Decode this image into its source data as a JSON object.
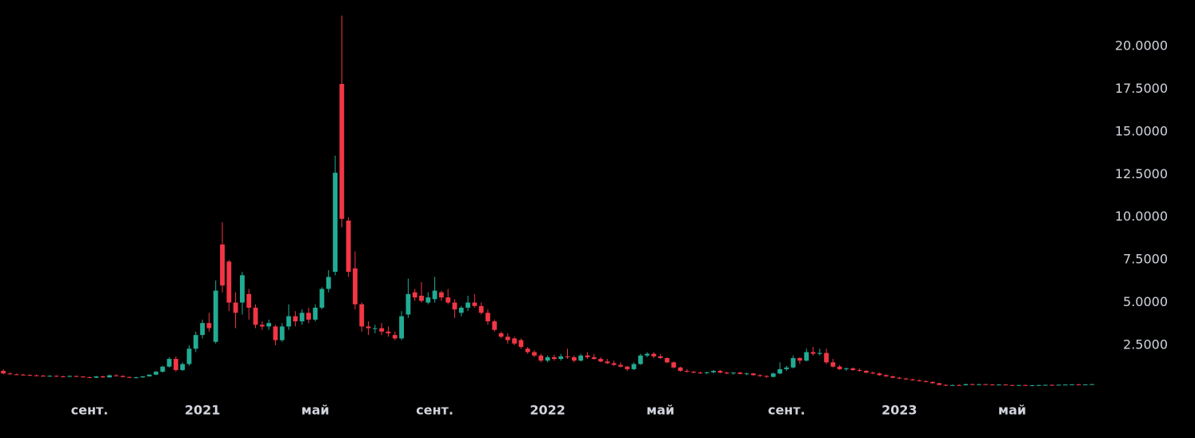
{
  "chart_data": {
    "type": "candlestick",
    "up_color": "#22ab94",
    "down_color": "#f23645",
    "xlim": [
      -0.5,
      165.8
    ],
    "ylim": [
      0,
      22.7
    ],
    "xticks": [
      {
        "value": 13,
        "label": "сент."
      },
      {
        "value": 30,
        "label": "2021"
      },
      {
        "value": 47,
        "label": "май"
      },
      {
        "value": 65,
        "label": "сент."
      },
      {
        "value": 82,
        "label": "2022"
      },
      {
        "value": 99,
        "label": "май"
      },
      {
        "value": 118,
        "label": "сент."
      },
      {
        "value": 135,
        "label": "2023"
      },
      {
        "value": 152,
        "label": "май"
      }
    ],
    "yticks": [
      {
        "value": 2.5,
        "label": "2.5000"
      },
      {
        "value": 5,
        "label": "5.0000"
      },
      {
        "value": 7.5,
        "label": "7.5000"
      },
      {
        "value": 10,
        "label": "10.0000"
      },
      {
        "value": 12.5,
        "label": "12.5000"
      },
      {
        "value": 15,
        "label": "15.0000"
      },
      {
        "value": 17.5,
        "label": "17.5000"
      },
      {
        "value": 20,
        "label": "20.0000"
      }
    ],
    "candles": [
      [
        1.0,
        1.1,
        0.8,
        0.85
      ],
      [
        0.85,
        0.9,
        0.78,
        0.8
      ],
      [
        0.8,
        0.85,
        0.75,
        0.78
      ],
      [
        0.78,
        0.82,
        0.72,
        0.76
      ],
      [
        0.76,
        0.8,
        0.7,
        0.74
      ],
      [
        0.74,
        0.78,
        0.68,
        0.72
      ],
      [
        0.72,
        0.76,
        0.66,
        0.7
      ],
      [
        0.7,
        0.75,
        0.65,
        0.71
      ],
      [
        0.71,
        0.74,
        0.64,
        0.68
      ],
      [
        0.68,
        0.72,
        0.62,
        0.66
      ],
      [
        0.66,
        0.74,
        0.64,
        0.7
      ],
      [
        0.7,
        0.73,
        0.63,
        0.67
      ],
      [
        0.67,
        0.7,
        0.6,
        0.63
      ],
      [
        0.63,
        0.68,
        0.58,
        0.6
      ],
      [
        0.6,
        0.7,
        0.58,
        0.68
      ],
      [
        0.68,
        0.72,
        0.6,
        0.62
      ],
      [
        0.62,
        0.78,
        0.6,
        0.74
      ],
      [
        0.74,
        0.8,
        0.66,
        0.7
      ],
      [
        0.7,
        0.74,
        0.62,
        0.64
      ],
      [
        0.64,
        0.68,
        0.58,
        0.6
      ],
      [
        0.6,
        0.66,
        0.56,
        0.62
      ],
      [
        0.62,
        0.7,
        0.6,
        0.68
      ],
      [
        0.68,
        0.8,
        0.66,
        0.78
      ],
      [
        0.78,
        1.0,
        0.75,
        0.95
      ],
      [
        0.95,
        1.3,
        0.9,
        1.25
      ],
      [
        1.25,
        1.8,
        1.2,
        1.7
      ],
      [
        1.7,
        1.85,
        0.95,
        1.05
      ],
      [
        1.05,
        1.5,
        1.0,
        1.4
      ],
      [
        1.4,
        2.5,
        1.3,
        2.3
      ],
      [
        2.3,
        3.3,
        2.1,
        3.1
      ],
      [
        3.1,
        4.0,
        2.9,
        3.8
      ],
      [
        3.8,
        4.4,
        3.3,
        3.5
      ],
      [
        2.7,
        6.3,
        2.6,
        5.7
      ],
      [
        8.4,
        9.7,
        5.6,
        6.0
      ],
      [
        7.4,
        7.5,
        4.5,
        5.0
      ],
      [
        5.0,
        5.6,
        3.5,
        4.4
      ],
      [
        5.0,
        6.8,
        4.3,
        6.6
      ],
      [
        5.5,
        5.8,
        4.0,
        4.7
      ],
      [
        4.7,
        4.9,
        3.5,
        3.7
      ],
      [
        3.7,
        3.9,
        3.4,
        3.6
      ],
      [
        3.6,
        4.0,
        3.4,
        3.8
      ],
      [
        3.6,
        3.7,
        2.5,
        2.8
      ],
      [
        2.8,
        3.8,
        2.7,
        3.6
      ],
      [
        3.6,
        4.9,
        3.4,
        4.2
      ],
      [
        4.2,
        4.5,
        3.6,
        3.9
      ],
      [
        3.9,
        4.6,
        3.7,
        4.4
      ],
      [
        4.4,
        4.7,
        3.8,
        4.0
      ],
      [
        4.0,
        4.9,
        3.9,
        4.7
      ],
      [
        4.7,
        5.9,
        4.6,
        5.8
      ],
      [
        5.8,
        6.9,
        5.6,
        6.5
      ],
      [
        6.8,
        13.6,
        6.6,
        12.6
      ],
      [
        17.8,
        21.8,
        9.4,
        9.9
      ],
      [
        9.8,
        10.0,
        6.5,
        6.8
      ],
      [
        7.0,
        8.0,
        4.6,
        4.9
      ],
      [
        4.9,
        5.0,
        3.3,
        3.6
      ],
      [
        3.6,
        3.9,
        3.1,
        3.5
      ],
      [
        3.5,
        3.7,
        3.2,
        3.5
      ],
      [
        3.5,
        3.8,
        3.1,
        3.3
      ],
      [
        3.3,
        3.6,
        3.0,
        3.2
      ],
      [
        3.1,
        3.3,
        2.8,
        2.9
      ],
      [
        2.9,
        4.5,
        2.8,
        4.2
      ],
      [
        4.3,
        6.4,
        4.1,
        5.5
      ],
      [
        5.6,
        5.8,
        5.1,
        5.3
      ],
      [
        5.4,
        6.2,
        5.0,
        5.1
      ],
      [
        5.0,
        5.6,
        4.9,
        5.3
      ],
      [
        5.2,
        6.5,
        5.0,
        5.7
      ],
      [
        5.6,
        5.7,
        5.1,
        5.3
      ],
      [
        5.3,
        5.8,
        4.9,
        5.0
      ],
      [
        5.0,
        5.2,
        4.1,
        4.6
      ],
      [
        4.4,
        4.8,
        4.2,
        4.7
      ],
      [
        4.7,
        5.4,
        4.5,
        5.0
      ],
      [
        5.0,
        5.5,
        4.7,
        4.8
      ],
      [
        4.8,
        5.0,
        4.3,
        4.4
      ],
      [
        4.4,
        4.6,
        3.7,
        3.9
      ],
      [
        3.9,
        4.0,
        3.3,
        3.4
      ],
      [
        3.2,
        3.3,
        2.9,
        3.0
      ],
      [
        3.0,
        3.2,
        2.6,
        2.8
      ],
      [
        2.9,
        3.0,
        2.5,
        2.6
      ],
      [
        2.8,
        2.9,
        2.3,
        2.4
      ],
      [
        2.3,
        2.4,
        2.0,
        2.1
      ],
      [
        2.1,
        2.2,
        1.8,
        1.9
      ],
      [
        1.9,
        2.0,
        1.5,
        1.6
      ],
      [
        1.6,
        1.9,
        1.5,
        1.8
      ],
      [
        1.8,
        1.95,
        1.6,
        1.7
      ],
      [
        1.7,
        2.0,
        1.6,
        1.85
      ],
      [
        1.85,
        2.3,
        1.7,
        1.8
      ],
      [
        1.8,
        1.9,
        1.5,
        1.6
      ],
      [
        1.6,
        2.0,
        1.55,
        1.9
      ],
      [
        1.9,
        2.1,
        1.7,
        1.8
      ],
      [
        1.8,
        2.0,
        1.65,
        1.7
      ],
      [
        1.7,
        1.8,
        1.5,
        1.55
      ],
      [
        1.55,
        1.7,
        1.4,
        1.45
      ],
      [
        1.45,
        1.6,
        1.3,
        1.35
      ],
      [
        1.35,
        1.5,
        1.2,
        1.25
      ],
      [
        1.25,
        1.3,
        1.0,
        1.1
      ],
      [
        1.1,
        1.5,
        1.05,
        1.4
      ],
      [
        1.4,
        2.0,
        1.35,
        1.9
      ],
      [
        1.9,
        2.1,
        1.8,
        2.0
      ],
      [
        2.0,
        2.1,
        1.75,
        1.85
      ],
      [
        1.85,
        2.0,
        1.7,
        1.75
      ],
      [
        1.75,
        1.8,
        1.45,
        1.5
      ],
      [
        1.5,
        1.55,
        1.15,
        1.2
      ],
      [
        1.2,
        1.25,
        0.95,
        1.0
      ],
      [
        1.0,
        1.1,
        0.9,
        0.95
      ],
      [
        0.95,
        1.0,
        0.85,
        0.9
      ],
      [
        0.9,
        0.95,
        0.82,
        0.88
      ],
      [
        0.88,
        0.95,
        0.8,
        0.92
      ],
      [
        0.92,
        1.05,
        0.85,
        1.0
      ],
      [
        1.0,
        1.05,
        0.85,
        0.9
      ],
      [
        0.9,
        0.95,
        0.8,
        0.85
      ],
      [
        0.85,
        0.92,
        0.78,
        0.9
      ],
      [
        0.9,
        0.95,
        0.8,
        0.82
      ],
      [
        0.82,
        0.9,
        0.75,
        0.85
      ],
      [
        0.85,
        0.88,
        0.72,
        0.75
      ],
      [
        0.75,
        0.8,
        0.65,
        0.7
      ],
      [
        0.7,
        0.75,
        0.6,
        0.65
      ],
      [
        0.65,
        0.9,
        0.62,
        0.85
      ],
      [
        0.85,
        1.5,
        0.8,
        1.1
      ],
      [
        1.1,
        1.3,
        1.0,
        1.2
      ],
      [
        1.2,
        1.9,
        1.15,
        1.75
      ],
      [
        1.75,
        1.8,
        1.4,
        1.6
      ],
      [
        1.6,
        2.3,
        1.55,
        2.1
      ],
      [
        2.1,
        2.4,
        1.9,
        2.0
      ],
      [
        2.0,
        2.3,
        1.9,
        2.05
      ],
      [
        2.05,
        2.3,
        1.4,
        1.5
      ],
      [
        1.5,
        1.7,
        1.2,
        1.25
      ],
      [
        1.25,
        1.35,
        1.05,
        1.1
      ],
      [
        1.1,
        1.2,
        1.0,
        1.15
      ],
      [
        1.15,
        1.2,
        1.0,
        1.05
      ],
      [
        1.05,
        1.15,
        0.95,
        1.0
      ],
      [
        1.0,
        1.05,
        0.85,
        0.9
      ],
      [
        0.9,
        0.95,
        0.8,
        0.85
      ],
      [
        0.85,
        0.9,
        0.72,
        0.75
      ],
      [
        0.75,
        0.8,
        0.65,
        0.68
      ],
      [
        0.68,
        0.72,
        0.58,
        0.6
      ],
      [
        0.6,
        0.65,
        0.52,
        0.55
      ],
      [
        0.55,
        0.6,
        0.48,
        0.5
      ],
      [
        0.5,
        0.55,
        0.42,
        0.45
      ],
      [
        0.45,
        0.5,
        0.38,
        0.4
      ],
      [
        0.4,
        0.45,
        0.33,
        0.35
      ],
      [
        0.35,
        0.4,
        0.25,
        0.28
      ],
      [
        0.28,
        0.3,
        0.15,
        0.18
      ],
      [
        0.18,
        0.22,
        0.12,
        0.15
      ],
      [
        0.15,
        0.2,
        0.12,
        0.17
      ],
      [
        0.17,
        0.22,
        0.14,
        0.16
      ],
      [
        0.16,
        0.25,
        0.14,
        0.22
      ],
      [
        0.22,
        0.26,
        0.18,
        0.2
      ],
      [
        0.2,
        0.24,
        0.16,
        0.22
      ],
      [
        0.22,
        0.25,
        0.18,
        0.2
      ],
      [
        0.2,
        0.23,
        0.16,
        0.18
      ],
      [
        0.18,
        0.22,
        0.15,
        0.2
      ],
      [
        0.2,
        0.23,
        0.16,
        0.17
      ],
      [
        0.17,
        0.2,
        0.14,
        0.16
      ],
      [
        0.16,
        0.19,
        0.13,
        0.17
      ],
      [
        0.17,
        0.2,
        0.14,
        0.15
      ],
      [
        0.15,
        0.18,
        0.12,
        0.16
      ],
      [
        0.16,
        0.19,
        0.13,
        0.17
      ],
      [
        0.17,
        0.2,
        0.14,
        0.18
      ],
      [
        0.18,
        0.21,
        0.15,
        0.17
      ],
      [
        0.17,
        0.2,
        0.14,
        0.19
      ],
      [
        0.19,
        0.22,
        0.16,
        0.2
      ],
      [
        0.2,
        0.23,
        0.17,
        0.21
      ],
      [
        0.21,
        0.24,
        0.18,
        0.2
      ],
      [
        0.2,
        0.22,
        0.17,
        0.21
      ],
      [
        0.21,
        0.24,
        0.18,
        0.22
      ]
    ]
  }
}
